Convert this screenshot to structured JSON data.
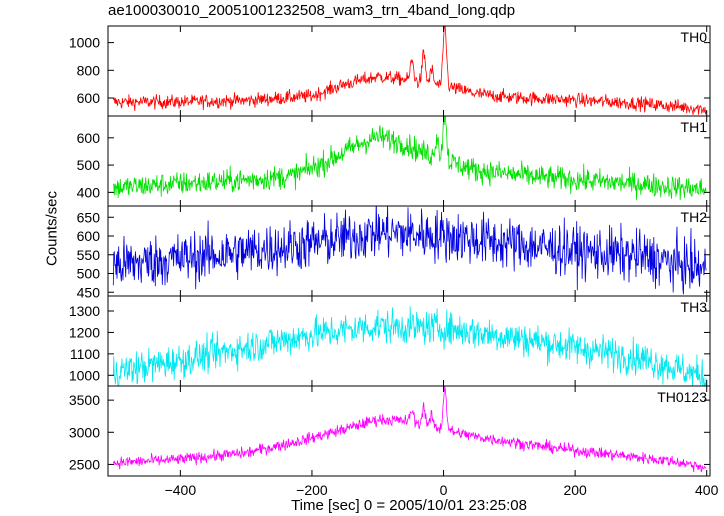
{
  "chart_data": {
    "type": "line",
    "title": "ae100030010_20051001232508_wam3_trn_4band_long.qdp",
    "xlabel": "Time [sec] 0 = 2005/10/01 23:25:08",
    "ylabel": "Counts/sec",
    "xlim": [
      -510,
      405
    ],
    "xticks": [
      -400,
      -200,
      0,
      200,
      400
    ],
    "x_tick_labels": [
      "−400",
      "−200",
      "0",
      "200",
      "400"
    ],
    "grid": false,
    "panels": [
      {
        "name": "TH0",
        "color": "#ff0000",
        "ylim": [
          470,
          1120
        ],
        "yticks": [
          600,
          800,
          1000
        ],
        "noise": 25,
        "trend": [
          [
            -510,
            570
          ],
          [
            -400,
            572
          ],
          [
            -300,
            582
          ],
          [
            -200,
            615
          ],
          [
            -150,
            700
          ],
          [
            -100,
            755
          ],
          [
            -60,
            735
          ],
          [
            -20,
            700
          ],
          [
            0,
            690
          ],
          [
            50,
            630
          ],
          [
            100,
            605
          ],
          [
            200,
            585
          ],
          [
            300,
            560
          ],
          [
            400,
            520
          ]
        ],
        "spikes": [
          [
            -48,
            870
          ],
          [
            -30,
            920
          ],
          [
            -18,
            800
          ],
          [
            2,
            1120
          ]
        ]
      },
      {
        "name": "TH1",
        "color": "#00e000",
        "ylim": [
          350,
          680
        ],
        "yticks": [
          400,
          500,
          600
        ],
        "noise": 22,
        "trend": [
          [
            -510,
            415
          ],
          [
            -400,
            432
          ],
          [
            -300,
            445
          ],
          [
            -230,
            460
          ],
          [
            -180,
            510
          ],
          [
            -130,
            575
          ],
          [
            -100,
            605
          ],
          [
            -60,
            580
          ],
          [
            -30,
            545
          ],
          [
            0,
            520
          ],
          [
            50,
            480
          ],
          [
            150,
            455
          ],
          [
            300,
            430
          ],
          [
            400,
            410
          ]
        ],
        "spikes": [
          [
            -10,
            610
          ],
          [
            2,
            700
          ]
        ]
      },
      {
        "name": "TH2",
        "color": "#0000e0",
        "ylim": [
          440,
          680
        ],
        "yticks": [
          450,
          500,
          550,
          600,
          650
        ],
        "noise": 35,
        "trend": [
          [
            -510,
            520
          ],
          [
            -400,
            540
          ],
          [
            -300,
            558
          ],
          [
            -200,
            580
          ],
          [
            -100,
            610
          ],
          [
            0,
            600
          ],
          [
            100,
            580
          ],
          [
            200,
            560
          ],
          [
            300,
            545
          ],
          [
            400,
            510
          ]
        ],
        "spikes": []
      },
      {
        "name": "TH3",
        "color": "#00e8f0",
        "ylim": [
          950,
          1370
        ],
        "yticks": [
          1000,
          1100,
          1200,
          1300
        ],
        "noise": 40,
        "trend": [
          [
            -510,
            1010
          ],
          [
            -400,
            1070
          ],
          [
            -300,
            1130
          ],
          [
            -200,
            1190
          ],
          [
            -100,
            1230
          ],
          [
            0,
            1220
          ],
          [
            100,
            1180
          ],
          [
            200,
            1130
          ],
          [
            300,
            1080
          ],
          [
            400,
            990
          ]
        ],
        "spikes": []
      },
      {
        "name": "TH0123",
        "color": "#ff00ff",
        "ylim": [
          2320,
          3720
        ],
        "yticks": [
          2500,
          3000,
          3500
        ],
        "noise": 45,
        "trend": [
          [
            -510,
            2520
          ],
          [
            -400,
            2580
          ],
          [
            -300,
            2680
          ],
          [
            -220,
            2860
          ],
          [
            -150,
            3050
          ],
          [
            -100,
            3200
          ],
          [
            -60,
            3180
          ],
          [
            -20,
            3080
          ],
          [
            0,
            3040
          ],
          [
            50,
            2930
          ],
          [
            150,
            2780
          ],
          [
            250,
            2660
          ],
          [
            350,
            2550
          ],
          [
            400,
            2450
          ]
        ],
        "spikes": [
          [
            -48,
            3350
          ],
          [
            -30,
            3400
          ],
          [
            -18,
            3250
          ],
          [
            2,
            3700
          ]
        ]
      }
    ]
  }
}
